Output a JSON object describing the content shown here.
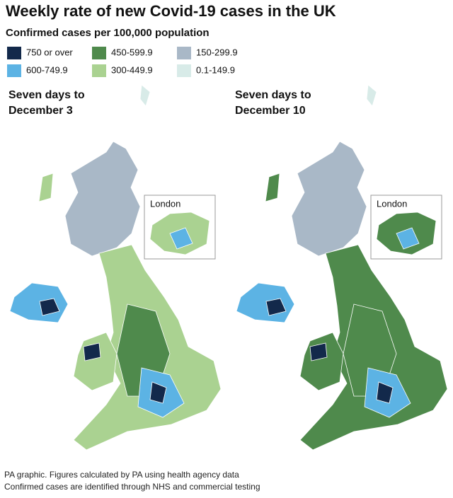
{
  "header": {
    "title": "Weekly rate of new Covid-19 cases in the UK",
    "subtitle": "Confirmed cases per 100,000 population"
  },
  "legend": [
    {
      "label": "750 or over",
      "color": "#13294b"
    },
    {
      "label": "600-749.9",
      "color": "#5cb3e4"
    },
    {
      "label": "450-599.9",
      "color": "#4f8a4c"
    },
    {
      "label": "300-449.9",
      "color": "#aad291"
    },
    {
      "label": "150-299.9",
      "color": "#a9b8c7"
    },
    {
      "label": "0.1-149.9",
      "color": "#d8ebe8"
    }
  ],
  "maps": [
    {
      "title": [
        "Seven days to",
        "December 3"
      ],
      "inset_label": "London"
    },
    {
      "title": [
        "Seven days to",
        "December 10"
      ],
      "inset_label": "London"
    }
  ],
  "footer": [
    "PA graphic. Figures calculated by PA using health agency data",
    "Confirmed cases are identified through NHS and commercial testing"
  ]
}
